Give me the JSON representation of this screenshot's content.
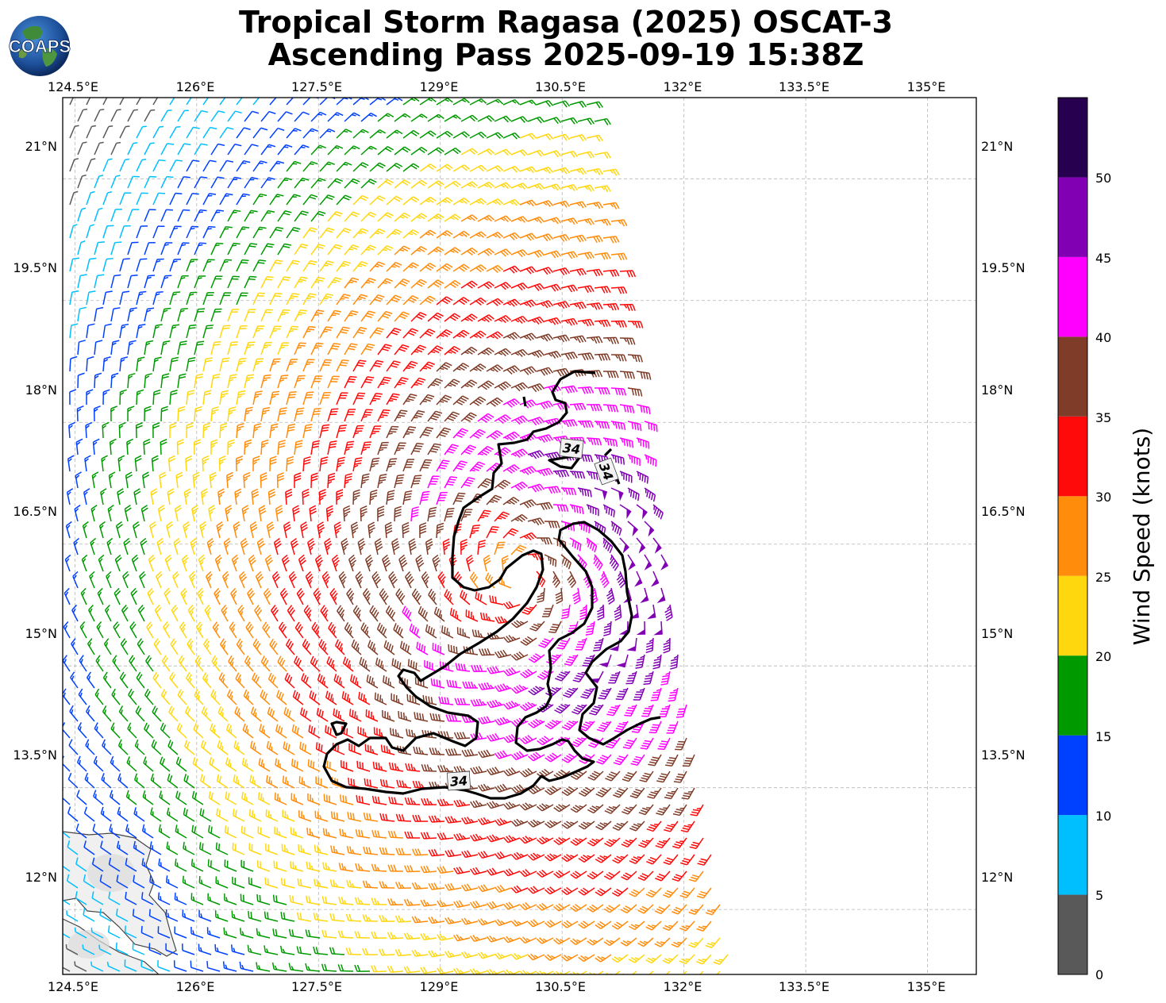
{
  "title_line1": "Tropical Storm Ragasa (2025) OSCAT-3",
  "title_line2": "Ascending Pass 2025-09-19 15:38Z",
  "logo_text": "COAPS",
  "map": {
    "lon_ticks": [
      "124.5°E",
      "126°E",
      "127.5°E",
      "129°E",
      "130.5°E",
      "132°E",
      "133.5°E",
      "135°E"
    ],
    "lat_ticks": [
      "21°N",
      "19.5°N",
      "18°N",
      "16.5°N",
      "15°N",
      "13.5°N",
      "12°N"
    ],
    "lon_range": [
      124.35,
      135.6
    ],
    "lat_range": [
      11.2,
      22.0
    ],
    "center": {
      "lon": 130.0,
      "lat": 16.1
    },
    "contour_value": 34,
    "contour_labels": [
      "34",
      "34",
      "34"
    ]
  },
  "colorbar": {
    "label": "Wind Speed (knots)",
    "ticks": [
      "0",
      "5",
      "10",
      "15",
      "20",
      "25",
      "30",
      "35",
      "40",
      "45",
      "50"
    ],
    "bins": [
      {
        "min": 0,
        "max": 5,
        "color": "#595959"
      },
      {
        "min": 5,
        "max": 10,
        "color": "#00bfff"
      },
      {
        "min": 10,
        "max": 15,
        "color": "#0040ff"
      },
      {
        "min": 15,
        "max": 20,
        "color": "#009a00"
      },
      {
        "min": 20,
        "max": 25,
        "color": "#ffd70f"
      },
      {
        "min": 25,
        "max": 30,
        "color": "#ff8c0a"
      },
      {
        "min": 30,
        "max": 35,
        "color": "#ff0a0a"
      },
      {
        "min": 35,
        "max": 40,
        "color": "#7f3c28"
      },
      {
        "min": 40,
        "max": 45,
        "color": "#ff00ff"
      },
      {
        "min": 45,
        "max": 50,
        "color": "#8200b4"
      },
      {
        "min": 50,
        "max": 55,
        "color": "#280050"
      }
    ]
  }
}
